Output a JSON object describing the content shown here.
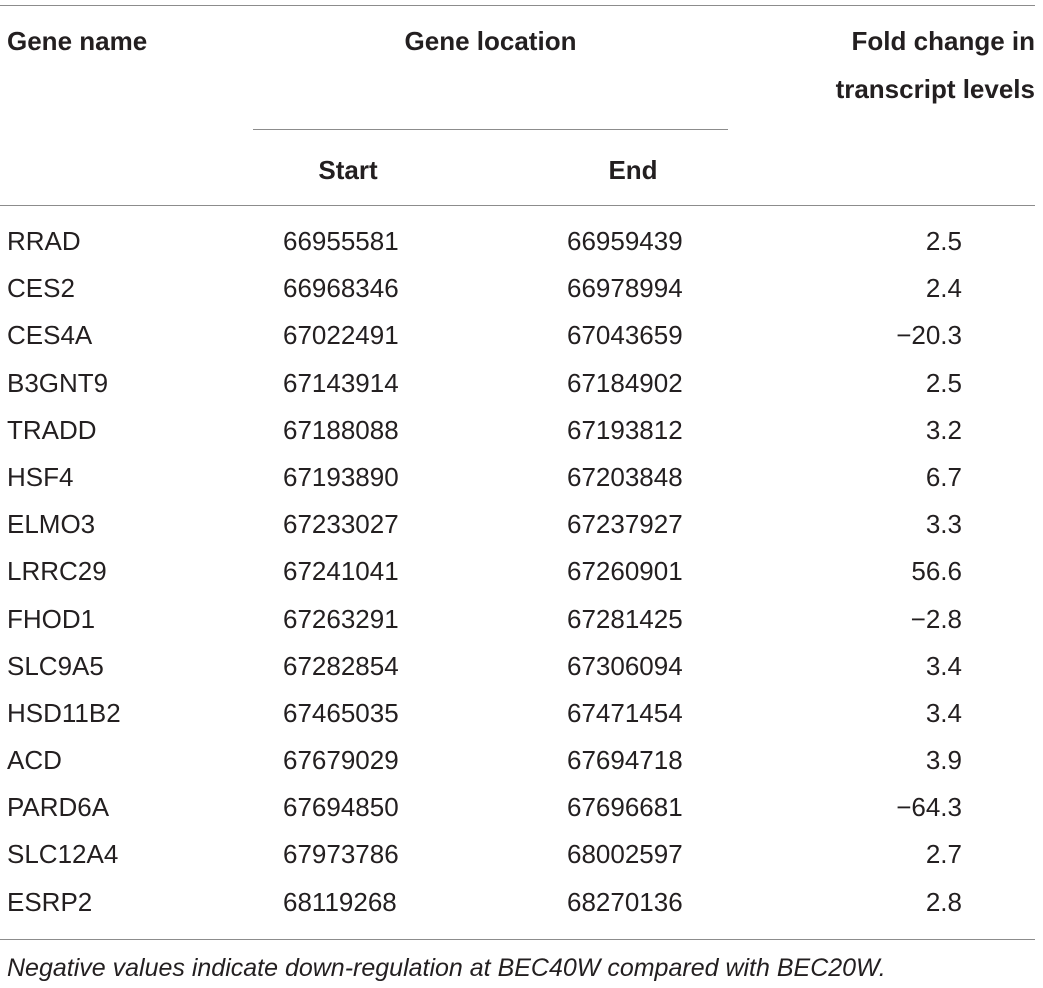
{
  "table": {
    "headers": {
      "gene_name": "Gene name",
      "gene_location": "Gene location",
      "fold_change_line1": "Fold change in",
      "fold_change_line2": "transcript levels",
      "start": "Start",
      "end": "End"
    },
    "rows": [
      {
        "gene": "RRAD",
        "start": "66955581",
        "end": "66959439",
        "fold": "2.5"
      },
      {
        "gene": "CES2",
        "start": "66968346",
        "end": "66978994",
        "fold": "2.4"
      },
      {
        "gene": "CES4A",
        "start": "67022491",
        "end": "67043659",
        "fold": "−20.3"
      },
      {
        "gene": "B3GNT9",
        "start": "67143914",
        "end": "67184902",
        "fold": "2.5"
      },
      {
        "gene": "TRADD",
        "start": "67188088",
        "end": "67193812",
        "fold": "3.2"
      },
      {
        "gene": "HSF4",
        "start": "67193890",
        "end": "67203848",
        "fold": "6.7"
      },
      {
        "gene": "ELMO3",
        "start": "67233027",
        "end": "67237927",
        "fold": "3.3"
      },
      {
        "gene": "LRRC29",
        "start": "67241041",
        "end": "67260901",
        "fold": "56.6"
      },
      {
        "gene": "FHOD1",
        "start": "67263291",
        "end": "67281425",
        "fold": "−2.8"
      },
      {
        "gene": "SLC9A5",
        "start": "67282854",
        "end": "67306094",
        "fold": "3.4"
      },
      {
        "gene": "HSD11B2",
        "start": "67465035",
        "end": "67471454",
        "fold": "3.4"
      },
      {
        "gene": "ACD",
        "start": "67679029",
        "end": "67694718",
        "fold": "3.9"
      },
      {
        "gene": "PARD6A",
        "start": "67694850",
        "end": "67696681",
        "fold": "−64.3"
      },
      {
        "gene": "SLC12A4",
        "start": "67973786",
        "end": "68002597",
        "fold": "2.7"
      },
      {
        "gene": "ESRP2",
        "start": "68119268",
        "end": "68270136",
        "fold": "2.8"
      }
    ],
    "footnote": "Negative values indicate down-regulation at BEC40W compared with BEC20W."
  }
}
